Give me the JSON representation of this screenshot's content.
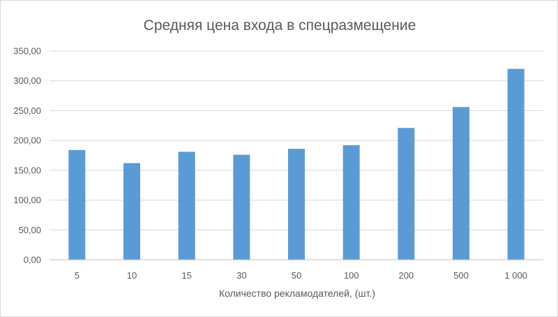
{
  "chart_data": {
    "type": "bar",
    "title": "Средняя цена входа в спецразмещение",
    "xlabel": "Количество рекламодателей, (шт.)",
    "ylabel": "",
    "categories": [
      "5",
      "10",
      "15",
      "30",
      "50",
      "100",
      "200",
      "500",
      "1 000"
    ],
    "values": [
      184,
      162,
      181,
      176,
      186,
      192,
      221,
      256,
      320
    ],
    "ylim": [
      0,
      350
    ],
    "yticks": [
      "0,00",
      "50,00",
      "100,00",
      "150,00",
      "200,00",
      "250,00",
      "300,00",
      "350,00"
    ],
    "grid": true,
    "bar_color": "#5b9bd5",
    "legend": "none"
  }
}
